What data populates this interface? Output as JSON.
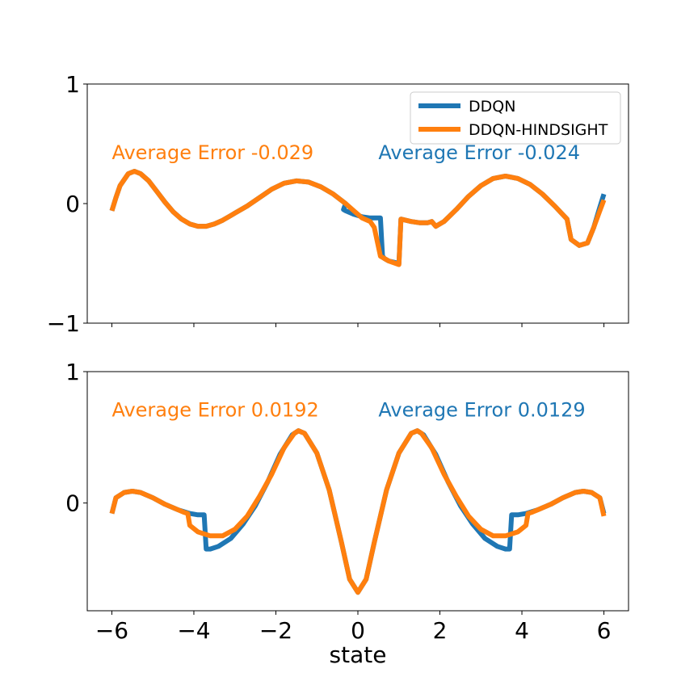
{
  "chart_data": [
    {
      "type": "line",
      "title": "",
      "xlabel": "",
      "ylabel": "",
      "xlim": [
        -6.6,
        6.6
      ],
      "ylim": [
        -1,
        1
      ],
      "yticks": [
        {
          "v": 1,
          "label": "1"
        },
        {
          "v": 0,
          "label": "0"
        },
        {
          "v": -1,
          "label": "−1"
        }
      ],
      "xticks": [
        -6,
        -4,
        -2,
        0,
        2,
        4,
        6
      ],
      "show_xtick_labels": false,
      "grid": false,
      "legend": {
        "placement": "top-right",
        "entries": [
          {
            "label": "DDQN",
            "color": "#1f77b4"
          },
          {
            "label": "DDQN-HINDSIGHT",
            "color": "#ff7f0e"
          }
        ]
      },
      "annotations": [
        {
          "text": "Average Error -0.029",
          "color": "#ff7f0e",
          "x": -6.0,
          "y": 0.37
        },
        {
          "text": "Average Error -0.024",
          "color": "#1f77b4",
          "x": 0.5,
          "y": 0.37
        }
      ],
      "series": [
        {
          "name": "DDQN",
          "color": "#1f77b4",
          "x": [
            -6.0,
            -5.9,
            -5.8,
            -5.6,
            -5.45,
            -5.3,
            -5.1,
            -4.9,
            -4.7,
            -4.5,
            -4.3,
            -4.1,
            -3.9,
            -3.7,
            -3.5,
            -3.3,
            -3.1,
            -3.0,
            -2.7,
            -2.4,
            -2.1,
            -1.8,
            -1.5,
            -1.2,
            -0.9,
            -0.6,
            -0.3,
            -0.35,
            -0.3,
            -0.1,
            0.1,
            0.3,
            0.55,
            0.6,
            0.65,
            0.75,
            1.0,
            1.05,
            1.3,
            1.5,
            1.7,
            1.8,
            1.9,
            2.1,
            2.4,
            2.7,
            3.0,
            3.3,
            3.6,
            3.9,
            4.2,
            4.5,
            4.8,
            5.1,
            5.2,
            5.4,
            5.6,
            5.75,
            5.9,
            6.0
          ],
          "values": [
            -0.06,
            0.05,
            0.15,
            0.25,
            0.27,
            0.25,
            0.19,
            0.1,
            0.01,
            -0.07,
            -0.13,
            -0.17,
            -0.19,
            -0.19,
            -0.17,
            -0.14,
            -0.1,
            -0.08,
            -0.02,
            0.05,
            0.12,
            0.17,
            0.19,
            0.18,
            0.14,
            0.08,
            0.0,
            -0.05,
            -0.06,
            -0.09,
            -0.11,
            -0.12,
            -0.12,
            -0.44,
            -0.46,
            -0.48,
            -0.5,
            -0.13,
            -0.15,
            -0.16,
            -0.16,
            -0.15,
            -0.19,
            -0.15,
            -0.05,
            0.06,
            0.15,
            0.21,
            0.23,
            0.21,
            0.16,
            0.08,
            -0.02,
            -0.13,
            -0.3,
            -0.35,
            -0.33,
            -0.2,
            -0.03,
            0.08
          ]
        },
        {
          "name": "DDQN-HINDSIGHT",
          "color": "#ff7f0e",
          "x": [
            -6.0,
            -5.9,
            -5.8,
            -5.6,
            -5.45,
            -5.3,
            -5.1,
            -4.9,
            -4.7,
            -4.5,
            -4.3,
            -4.1,
            -3.9,
            -3.7,
            -3.5,
            -3.3,
            -3.1,
            -3.0,
            -2.7,
            -2.4,
            -2.1,
            -1.8,
            -1.5,
            -1.2,
            -0.9,
            -0.6,
            -0.3,
            -0.1,
            0.1,
            0.3,
            0.4,
            0.55,
            0.75,
            1.0,
            1.05,
            1.3,
            1.5,
            1.7,
            1.8,
            1.9,
            2.1,
            2.4,
            2.7,
            3.0,
            3.3,
            3.6,
            3.9,
            4.2,
            4.5,
            4.8,
            5.1,
            5.2,
            5.4,
            5.6,
            5.75,
            5.9,
            6.0
          ],
          "values": [
            -0.06,
            0.05,
            0.15,
            0.25,
            0.27,
            0.25,
            0.19,
            0.1,
            0.01,
            -0.07,
            -0.13,
            -0.17,
            -0.19,
            -0.19,
            -0.17,
            -0.14,
            -0.1,
            -0.08,
            -0.02,
            0.05,
            0.12,
            0.17,
            0.19,
            0.18,
            0.14,
            0.08,
            0.0,
            -0.06,
            -0.12,
            -0.15,
            -0.2,
            -0.44,
            -0.48,
            -0.51,
            -0.13,
            -0.15,
            -0.16,
            -0.16,
            -0.15,
            -0.19,
            -0.15,
            -0.05,
            0.06,
            0.15,
            0.21,
            0.23,
            0.21,
            0.16,
            0.08,
            -0.02,
            -0.13,
            -0.3,
            -0.35,
            -0.33,
            -0.2,
            -0.06,
            0.03
          ]
        }
      ]
    },
    {
      "type": "line",
      "title": "",
      "xlabel": "state",
      "ylabel": "",
      "xlim": [
        -6.6,
        6.6
      ],
      "ylim": [
        -0.82,
        1
      ],
      "yticks": [
        {
          "v": 1,
          "label": "1"
        },
        {
          "v": 0,
          "label": "0"
        }
      ],
      "xticks": [
        -6,
        -4,
        -2,
        0,
        2,
        4,
        6
      ],
      "xtick_labels": [
        "−6",
        "−4",
        "−2",
        "0",
        "2",
        "4",
        "6"
      ],
      "show_xtick_labels": true,
      "grid": false,
      "annotations": [
        {
          "text": "Average Error 0.0192",
          "color": "#ff7f0e",
          "x": -6.0,
          "y": 0.66
        },
        {
          "text": "Average Error 0.0129",
          "color": "#1f77b4",
          "x": 0.5,
          "y": 0.66
        }
      ],
      "series": [
        {
          "name": "DDQN",
          "color": "#1f77b4",
          "x": [
            -6.0,
            -5.9,
            -5.7,
            -5.5,
            -5.3,
            -5.0,
            -4.7,
            -4.4,
            -4.1,
            -3.9,
            -3.75,
            -3.7,
            -3.6,
            -3.4,
            -3.1,
            -2.8,
            -2.5,
            -2.2,
            -1.9,
            -1.6,
            -1.45,
            -1.3,
            -1.0,
            -0.7,
            -0.4,
            -0.2,
            0.0,
            0.2,
            0.4,
            0.7,
            1.0,
            1.3,
            1.45,
            1.6,
            1.9,
            2.2,
            2.5,
            2.8,
            3.1,
            3.4,
            3.6,
            3.7,
            3.75,
            3.9,
            4.1,
            4.4,
            4.7,
            5.0,
            5.3,
            5.5,
            5.7,
            5.9,
            6.0
          ],
          "values": [
            -0.08,
            0.04,
            0.08,
            0.09,
            0.08,
            0.04,
            -0.01,
            -0.05,
            -0.08,
            -0.09,
            -0.09,
            -0.35,
            -0.35,
            -0.33,
            -0.27,
            -0.16,
            -0.02,
            0.16,
            0.37,
            0.52,
            0.55,
            0.53,
            0.38,
            0.1,
            -0.3,
            -0.58,
            -0.68,
            -0.58,
            -0.3,
            0.1,
            0.38,
            0.53,
            0.55,
            0.52,
            0.37,
            0.16,
            -0.02,
            -0.16,
            -0.27,
            -0.33,
            -0.35,
            -0.35,
            -0.09,
            -0.09,
            -0.08,
            -0.05,
            -0.01,
            0.04,
            0.08,
            0.09,
            0.08,
            0.04,
            -0.08
          ]
        },
        {
          "name": "DDQN-HINDSIGHT",
          "color": "#ff7f0e",
          "x": [
            -6.0,
            -5.9,
            -5.7,
            -5.5,
            -5.3,
            -5.0,
            -4.7,
            -4.4,
            -4.25,
            -4.15,
            -4.1,
            -3.9,
            -3.6,
            -3.3,
            -3.0,
            -2.7,
            -2.4,
            -2.1,
            -1.8,
            -1.55,
            -1.45,
            -1.3,
            -1.0,
            -0.7,
            -0.4,
            -0.2,
            0.0,
            0.2,
            0.4,
            0.7,
            1.0,
            1.3,
            1.45,
            1.55,
            1.8,
            2.1,
            2.4,
            2.7,
            3.0,
            3.3,
            3.6,
            3.9,
            4.1,
            4.15,
            4.25,
            4.4,
            4.7,
            5.0,
            5.3,
            5.5,
            5.7,
            5.9,
            6.0
          ],
          "values": [
            -0.08,
            0.04,
            0.08,
            0.09,
            0.08,
            0.04,
            -0.01,
            -0.05,
            -0.07,
            -0.08,
            -0.17,
            -0.22,
            -0.25,
            -0.25,
            -0.2,
            -0.1,
            0.05,
            0.22,
            0.42,
            0.53,
            0.55,
            0.53,
            0.38,
            0.1,
            -0.3,
            -0.58,
            -0.68,
            -0.58,
            -0.3,
            0.1,
            0.38,
            0.53,
            0.55,
            0.53,
            0.42,
            0.22,
            0.05,
            -0.1,
            -0.2,
            -0.25,
            -0.25,
            -0.22,
            -0.17,
            -0.08,
            -0.07,
            -0.05,
            -0.01,
            0.04,
            0.08,
            0.09,
            0.08,
            0.04,
            -0.1
          ]
        }
      ]
    }
  ]
}
